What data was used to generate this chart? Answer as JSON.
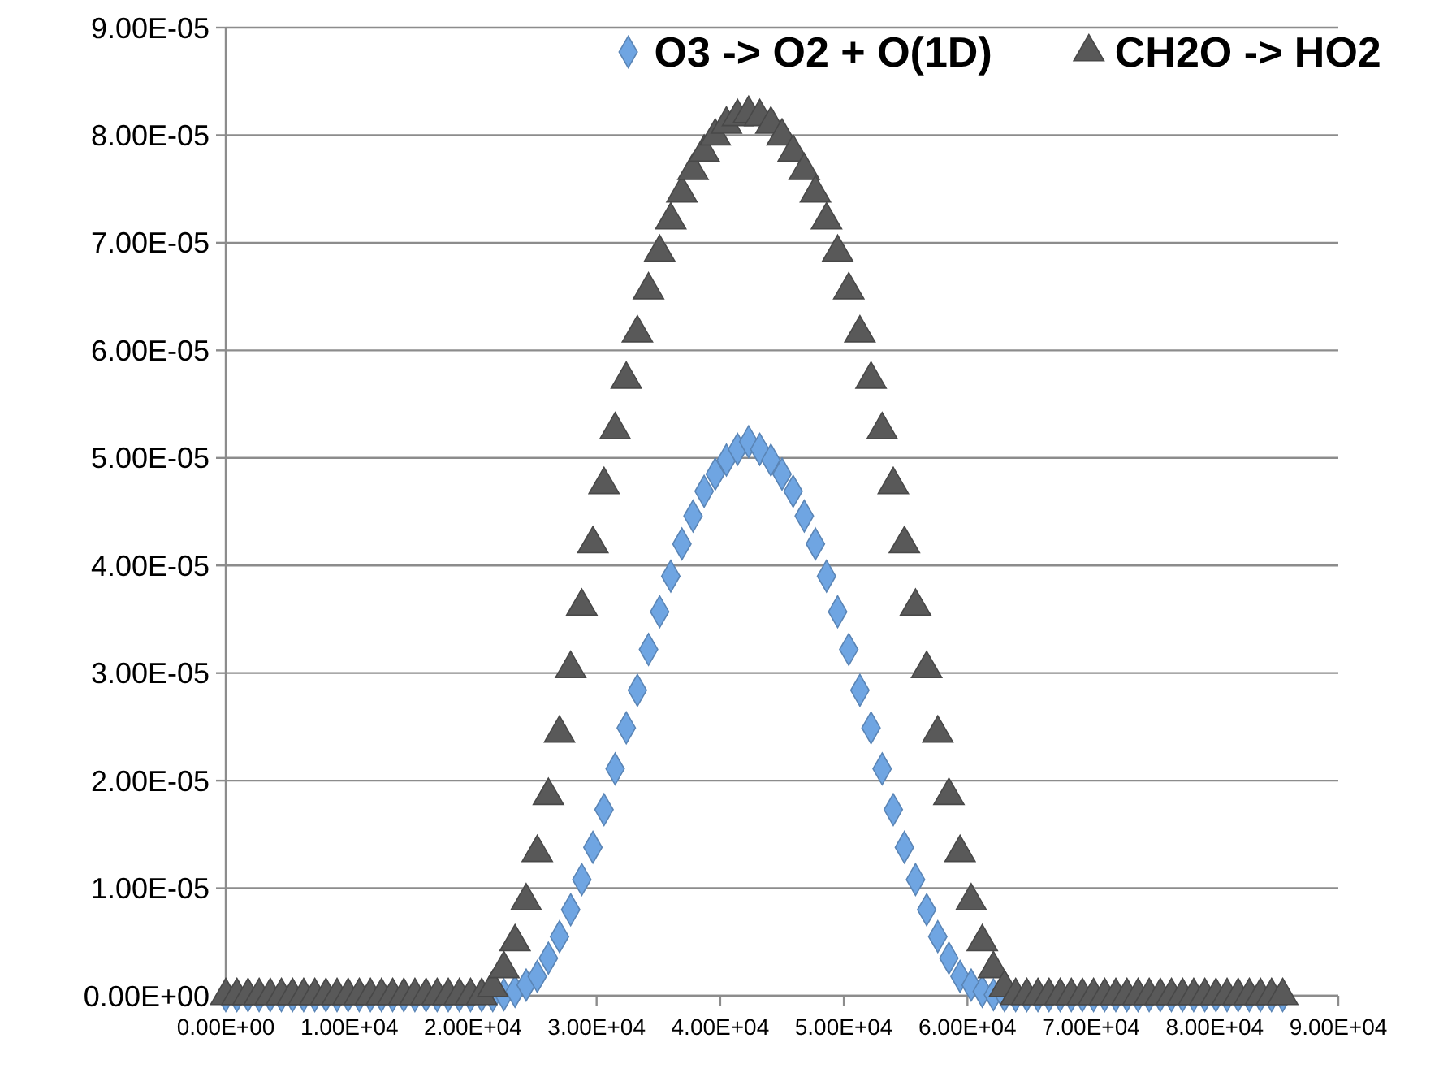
{
  "chart_data": {
    "type": "scatter",
    "x": [
      0,
      900,
      1800,
      2700,
      3600,
      4500,
      5400,
      6300,
      7200,
      8100,
      9000,
      9900,
      10800,
      11700,
      12600,
      13500,
      14400,
      15300,
      16200,
      17100,
      18000,
      18900,
      19800,
      20700,
      21600,
      22500,
      23400,
      24300,
      25200,
      26100,
      27000,
      27900,
      28800,
      29700,
      30600,
      31500,
      32400,
      33300,
      34200,
      35100,
      36000,
      36900,
      37800,
      38700,
      39600,
      40500,
      41400,
      42300,
      43200,
      44100,
      45000,
      45900,
      46800,
      47700,
      48600,
      49500,
      50400,
      51300,
      52200,
      53100,
      54000,
      54900,
      55800,
      56700,
      57600,
      58500,
      59400,
      60300,
      61200,
      62100,
      63000,
      63900,
      64800,
      65700,
      66600,
      67500,
      68400,
      69300,
      70200,
      71100,
      72000,
      72900,
      73800,
      74700,
      75600,
      76500,
      77400,
      78300,
      79200,
      80100,
      81000,
      81900,
      82800,
      83700,
      84600,
      85500
    ],
    "series": [
      {
        "name": "O3 -> O2 + O(1D)",
        "color": "#6fa5e2",
        "marker": "diamond",
        "values": [
          0,
          0,
          0,
          0,
          0,
          0,
          0,
          0,
          0,
          0,
          0,
          0,
          0,
          0,
          0,
          0,
          0,
          0,
          0,
          0,
          0,
          0,
          0,
          0,
          0,
          1e-07,
          4e-07,
          1e-06,
          1.8e-06,
          3.5e-06,
          5.5e-06,
          8e-06,
          1.08e-05,
          1.38e-05,
          1.73e-05,
          2.11e-05,
          2.49e-05,
          2.84e-05,
          3.22e-05,
          3.57e-05,
          3.9e-05,
          4.2e-05,
          4.46e-05,
          4.69e-05,
          4.85e-05,
          4.98e-05,
          5.08e-05,
          5.15e-05,
          5.08e-05,
          4.98e-05,
          4.85e-05,
          4.69e-05,
          4.46e-05,
          4.2e-05,
          3.9e-05,
          3.57e-05,
          3.22e-05,
          2.84e-05,
          2.49e-05,
          2.11e-05,
          1.73e-05,
          1.38e-05,
          1.08e-05,
          8e-06,
          5.5e-06,
          3.5e-06,
          1.8e-06,
          1e-06,
          4e-07,
          1e-07,
          0,
          0,
          0,
          0,
          0,
          0,
          0,
          0,
          0,
          0,
          0,
          0,
          0,
          0,
          0,
          0,
          0,
          0,
          0,
          0,
          0,
          0,
          0,
          0,
          0,
          0
        ]
      },
      {
        "name": "CH2O -> HO2",
        "color": "#595959",
        "marker": "triangle",
        "values": [
          0,
          0,
          0,
          0,
          0,
          0,
          0,
          0,
          0,
          0,
          0,
          0,
          0,
          0,
          0,
          0,
          0,
          0,
          0,
          0,
          0,
          0,
          0,
          0,
          7.5e-07,
          2.5e-06,
          5e-06,
          8.8e-06,
          1.33e-05,
          1.86e-05,
          2.44e-05,
          3.04e-05,
          3.62e-05,
          4.2e-05,
          4.75e-05,
          5.26e-05,
          5.73e-05,
          6.16e-05,
          6.56e-05,
          6.91e-05,
          7.21e-05,
          7.46e-05,
          7.67e-05,
          7.84e-05,
          7.99e-05,
          8.1e-05,
          8.17e-05,
          8.2e-05,
          8.17e-05,
          8.1e-05,
          7.99e-05,
          7.84e-05,
          7.67e-05,
          7.46e-05,
          7.21e-05,
          6.91e-05,
          6.56e-05,
          6.16e-05,
          5.73e-05,
          5.26e-05,
          4.75e-05,
          4.2e-05,
          3.62e-05,
          3.04e-05,
          2.44e-05,
          1.86e-05,
          1.33e-05,
          8.8e-06,
          5e-06,
          2.5e-06,
          7.5e-07,
          0,
          0,
          0,
          0,
          0,
          0,
          0,
          0,
          0,
          0,
          0,
          0,
          0,
          0,
          0,
          0,
          0,
          0,
          0,
          0,
          0,
          0,
          0,
          0,
          0
        ]
      }
    ],
    "xlim": [
      0,
      90000
    ],
    "xticks": [
      {
        "value": 0,
        "label": "0.00E+00"
      },
      {
        "value": 10000,
        "label": "1.00E+04"
      },
      {
        "value": 20000,
        "label": "2.00E+04"
      },
      {
        "value": 30000,
        "label": "3.00E+04"
      },
      {
        "value": 40000,
        "label": "4.00E+04"
      },
      {
        "value": 50000,
        "label": "5.00E+04"
      },
      {
        "value": 60000,
        "label": "6.00E+04"
      },
      {
        "value": 70000,
        "label": "7.00E+04"
      },
      {
        "value": 80000,
        "label": "8.00E+04"
      },
      {
        "value": 90000,
        "label": "9.00E+04"
      }
    ],
    "ylim": [
      0,
      9e-05
    ],
    "yticks": [
      {
        "value": 0,
        "label": "0.00E+00"
      },
      {
        "value": 1e-05,
        "label": "1.00E-05"
      },
      {
        "value": 2e-05,
        "label": "2.00E-05"
      },
      {
        "value": 3e-05,
        "label": "3.00E-05"
      },
      {
        "value": 4e-05,
        "label": "4.00E-05"
      },
      {
        "value": 5e-05,
        "label": "5.00E-05"
      },
      {
        "value": 6e-05,
        "label": "6.00E-05"
      },
      {
        "value": 7e-05,
        "label": "7.00E-05"
      },
      {
        "value": 8e-05,
        "label": "8.00E-05"
      },
      {
        "value": 9e-05,
        "label": "9.00E-05"
      }
    ],
    "grid": "y",
    "legend": "top right"
  }
}
